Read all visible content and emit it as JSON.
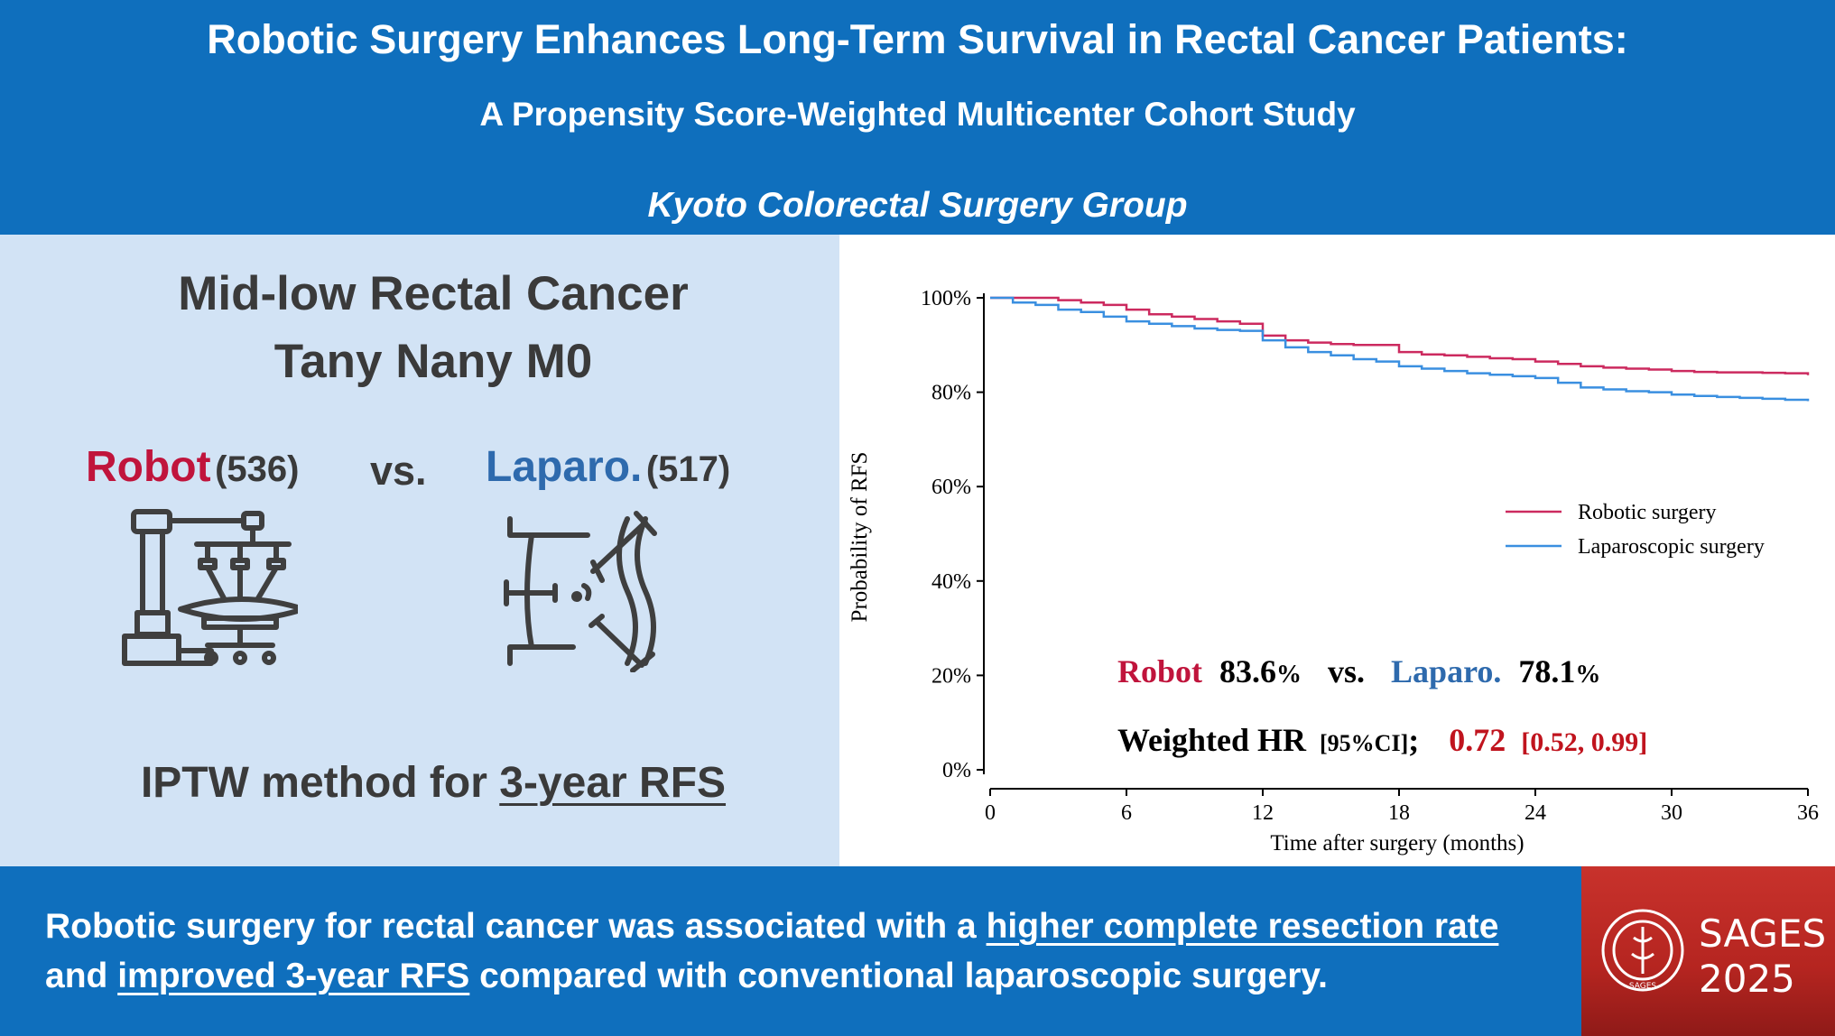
{
  "header": {
    "title": "Robotic Surgery Enhances Long-Term Survival in Rectal Cancer Patients:",
    "subtitle": "A Propensity Score-Weighted Multicenter Cohort Study",
    "group": "Kyoto Colorectal Surgery Group"
  },
  "cohort": {
    "title": "Mid-low Rectal Cancer",
    "stage": "Tany Nany M0",
    "robot_label": "Robot",
    "robot_n": "(536)",
    "vs": "vs.",
    "laparo_label": "Laparo.",
    "laparo_n": "(517)",
    "robot_icon": "surgical-robot-icon",
    "laparo_icon": "laparoscopic-surgery-icon",
    "method_prefix": "IPTW method for",
    "method_emphasis": "3-year RFS"
  },
  "colors": {
    "robot": "#c0143c",
    "laparo": "#2e6aad",
    "robot_line": "#cc2a5f",
    "laparo_line": "#3a8fe0",
    "banner": "#0f6fbd",
    "panel": "#d2e3f5",
    "hr_red": "#c0141e"
  },
  "chart_data": {
    "type": "line",
    "xlabel": "Time after surgery (months)",
    "ylabel": "Probability of RFS",
    "xlim": [
      0,
      36
    ],
    "ylim": [
      0,
      100
    ],
    "xticks": [
      "0",
      "6",
      "12",
      "18",
      "24",
      "30",
      "36"
    ],
    "yticks": [
      "0%",
      "20%",
      "40%",
      "60%",
      "80%",
      "100%"
    ],
    "legend_position": "right",
    "series": [
      {
        "name": "Robotic surgery",
        "x": [
          0,
          1,
          2,
          3,
          4,
          5,
          6,
          7,
          8,
          9,
          10,
          11,
          12,
          13,
          14,
          15,
          16,
          17,
          18,
          19,
          20,
          21,
          22,
          23,
          24,
          25,
          26,
          27,
          28,
          29,
          30,
          31,
          32,
          33,
          34,
          35,
          36
        ],
        "y": [
          100,
          100,
          100,
          99.5,
          99,
          98.5,
          97.5,
          96.5,
          96,
          95.5,
          95,
          94.5,
          92,
          91,
          90.5,
          90.2,
          90,
          90,
          88.5,
          88,
          87.8,
          87.5,
          87.2,
          87,
          86.5,
          86,
          85.5,
          85.2,
          85,
          84.8,
          84.5,
          84.3,
          84.2,
          84.2,
          84.1,
          84,
          83.6
        ]
      },
      {
        "name": "Laparoscopic surgery",
        "x": [
          0,
          1,
          2,
          3,
          4,
          5,
          6,
          7,
          8,
          9,
          10,
          11,
          12,
          13,
          14,
          15,
          16,
          17,
          18,
          19,
          20,
          21,
          22,
          23,
          24,
          25,
          26,
          27,
          28,
          29,
          30,
          31,
          32,
          33,
          34,
          35,
          36
        ],
        "y": [
          100,
          99,
          98.5,
          97.5,
          97,
          96,
          95,
          94.5,
          94,
          93.5,
          93.2,
          93,
          91,
          89.5,
          88.5,
          87.8,
          87,
          86.5,
          85.5,
          85,
          84.5,
          84,
          83.7,
          83.4,
          83,
          82,
          81,
          80.6,
          80.2,
          80,
          79.5,
          79.2,
          79,
          78.8,
          78.6,
          78.4,
          78.1
        ]
      }
    ],
    "annotation": {
      "robot_label": "Robot",
      "robot_value": "83.6",
      "vs": "vs.",
      "laparo_label": "Laparo.",
      "laparo_value": "78.1",
      "percent": "%",
      "hr_label": "Weighted HR",
      "hr_ci_label": "[95%CI]",
      "hr_sep": ";",
      "hr_value": "0.72",
      "hr_ci": "[0.52, 0.99]"
    }
  },
  "footer": {
    "line1_prefix": "Robotic surgery for rectal cancer was associated with a",
    "line1_emphasis": "higher complete resection rate",
    "line2_prefix": "and",
    "line2_emphasis": "improved 3-year RFS",
    "line2_suffix": "compared with conventional laparoscopic surgery."
  },
  "sages": {
    "name": "SAGES",
    "year": "2025",
    "seal_text": "SAGES",
    "icon": "sages-seal-icon"
  }
}
